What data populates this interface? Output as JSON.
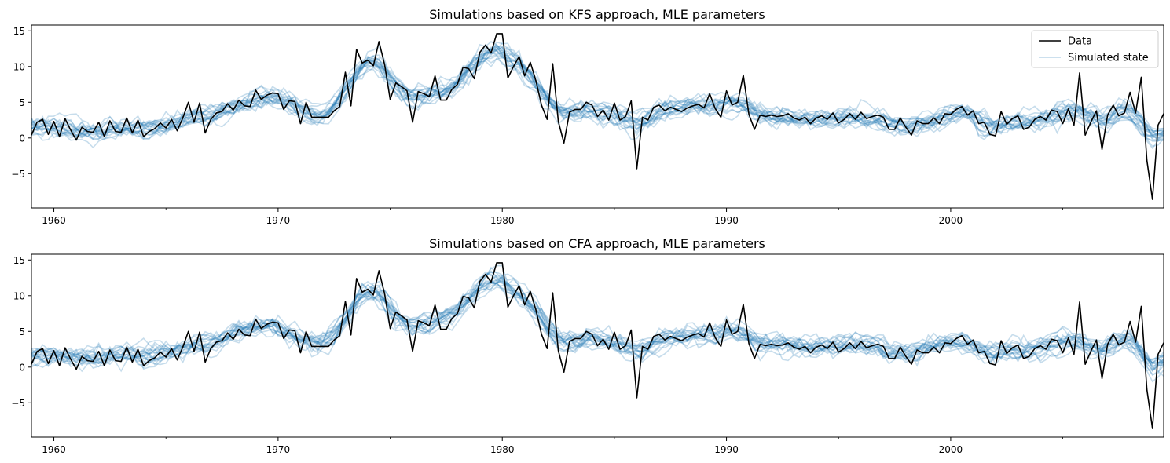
{
  "chart_data": [
    {
      "type": "line",
      "title": "Simulations based on KFS approach, MLE parameters",
      "xlabel": "",
      "ylabel": "",
      "xlim": [
        1959.0,
        2009.5
      ],
      "ylim": [
        -9.8,
        15.8
      ],
      "xticks": [
        1960,
        1970,
        1980,
        1990,
        2000
      ],
      "xticklabels": [
        "1960",
        "1970",
        "1980",
        "1990",
        "2000"
      ],
      "xminor_ticks": [
        1965,
        1975,
        1985,
        1995,
        2005
      ],
      "yticks": [
        -5,
        0,
        5,
        10,
        15
      ],
      "yticklabels": [
        "−5",
        "0",
        "5",
        "10",
        "15"
      ],
      "grid": false,
      "legend": {
        "placement": "upper right",
        "entries": [
          {
            "label": "Data",
            "color": "#000000"
          },
          {
            "label": "Simulated state",
            "color": "#1f77b4"
          }
        ]
      },
      "sim_seed": 11
    },
    {
      "type": "line",
      "title": "Simulations based on CFA approach, MLE parameters",
      "xlabel": "",
      "ylabel": "",
      "xlim": [
        1959.0,
        2009.5
      ],
      "ylim": [
        -9.8,
        15.8
      ],
      "xticks": [
        1960,
        1970,
        1980,
        1990,
        2000
      ],
      "xticklabels": [
        "1960",
        "1970",
        "1980",
        "1990",
        "2000"
      ],
      "xminor_ticks": [
        1965,
        1975,
        1985,
        1995,
        2005
      ],
      "yticks": [
        -5,
        0,
        5,
        10,
        15
      ],
      "yticklabels": [
        "−5",
        "0",
        "5",
        "10",
        "15"
      ],
      "grid": false,
      "sim_seed": 29
    }
  ],
  "series_common": {
    "data_color": "#000000",
    "sim_color": "#1f77b4",
    "sim_opacity": 0.25,
    "n_simulations": 20,
    "data_x_start": 1959.0,
    "data_x_step": 0.25,
    "data_y": [
      0.4,
      2.2,
      2.6,
      0.5,
      2.3,
      0.2,
      2.7,
      1.1,
      -0.3,
      1.5,
      0.9,
      0.8,
      2.2,
      0.2,
      2.4,
      0.9,
      0.8,
      2.8,
      0.7,
      2.5,
      0.2,
      0.9,
      1.3,
      2.1,
      1.4,
      2.6,
      1.0,
      2.8,
      5.0,
      2.2,
      4.9,
      0.7,
      2.6,
      3.5,
      3.7,
      4.8,
      3.9,
      5.3,
      4.5,
      4.4,
      6.7,
      5.4,
      6.0,
      6.3,
      6.2,
      4.0,
      5.2,
      5.1,
      2.0,
      5.0,
      2.9,
      2.9,
      2.9,
      2.9,
      3.8,
      4.4,
      9.2,
      4.5,
      12.4,
      10.5,
      10.9,
      10.1,
      13.5,
      10.3,
      5.4,
      7.7,
      7.2,
      6.6,
      2.2,
      6.5,
      6.2,
      5.8,
      8.7,
      5.3,
      5.3,
      6.8,
      7.5,
      9.9,
      9.7,
      8.3,
      12.0,
      13.0,
      11.9,
      14.6,
      14.6,
      8.4,
      10.0,
      11.4,
      8.7,
      10.6,
      8.0,
      4.6,
      2.6,
      10.4,
      2.3,
      -0.7,
      3.6,
      4.0,
      4.0,
      5.0,
      4.6,
      3.0,
      3.9,
      2.5,
      4.9,
      2.5,
      3.0,
      5.2,
      -4.3,
      2.9,
      2.5,
      4.3,
      4.6,
      3.8,
      4.3,
      4.0,
      3.7,
      4.2,
      4.5,
      4.7,
      4.2,
      6.2,
      4.1,
      2.9,
      6.6,
      4.6,
      5.0,
      8.8,
      3.3,
      1.2,
      3.2,
      3.0,
      3.2,
      3.0,
      3.1,
      3.4,
      2.8,
      2.5,
      2.9,
      2.0,
      2.8,
      3.1,
      2.6,
      3.5,
      2.1,
      2.6,
      3.4,
      2.6,
      3.6,
      2.7,
      3.0,
      3.2,
      2.9,
      1.2,
      1.2,
      2.8,
      1.5,
      0.4,
      2.4,
      2.0,
      2.0,
      2.8,
      2.0,
      3.4,
      3.3,
      4.0,
      4.4,
      3.2,
      3.8,
      2.0,
      2.2,
      0.5,
      0.3,
      3.7,
      1.9,
      2.7,
      3.1,
      1.2,
      1.5,
      2.6,
      3.0,
      2.5,
      3.9,
      3.7,
      2.0,
      4.1,
      1.8,
      9.1,
      0.4,
      2.2,
      3.8,
      -1.6,
      3.2,
      4.6,
      3.1,
      3.5,
      6.4,
      3.5,
      8.5,
      -3.1,
      -8.6,
      1.8,
      3.4,
      3.6
    ]
  }
}
